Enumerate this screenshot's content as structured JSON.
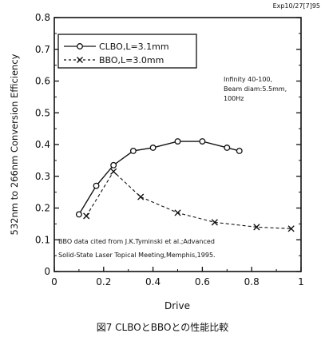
{
  "stamp": "Exp10/27[7]95",
  "caption": "図7 CLBOとBBOとの性能比較",
  "chart_data": {
    "type": "line",
    "xlabel": "Drive",
    "ylabel": "532nm to 266nm Conversion Efficiency",
    "xlim": [
      0,
      1
    ],
    "ylim": [
      0,
      0.8
    ],
    "x_ticks": [
      "0",
      "0.2",
      "0.4",
      "0.6",
      "0.8",
      "1"
    ],
    "y_ticks": [
      "0",
      "0.1",
      "0.2",
      "0.3",
      "0.4",
      "0.5",
      "0.6",
      "0.7",
      "0.8"
    ],
    "grid": false,
    "legend_position": "top-left",
    "series": [
      {
        "name": "CLBO,L=3.1mm",
        "marker": "circle",
        "line_style": "solid",
        "x": [
          0.1,
          0.17,
          0.24,
          0.32,
          0.4,
          0.5,
          0.6,
          0.7,
          0.75
        ],
        "y": [
          0.18,
          0.27,
          0.335,
          0.38,
          0.39,
          0.41,
          0.41,
          0.39,
          0.38
        ]
      },
      {
        "name": "BBO,L=3.0mm",
        "marker": "x",
        "line_style": "dashed",
        "x": [
          0.13,
          0.24,
          0.35,
          0.5,
          0.65,
          0.82,
          0.96
        ],
        "y": [
          0.175,
          0.315,
          0.235,
          0.185,
          0.155,
          0.14,
          0.135
        ]
      }
    ],
    "annotations": [
      "Infinity 40-100,",
      "Beam diam:5.5mm,",
      "100Hz"
    ],
    "citation": [
      "BBO data cited from J.K.Tyminski et al.;Advanced",
      "Solid-State Laser Topical Meeting,Memphis,1995."
    ]
  }
}
